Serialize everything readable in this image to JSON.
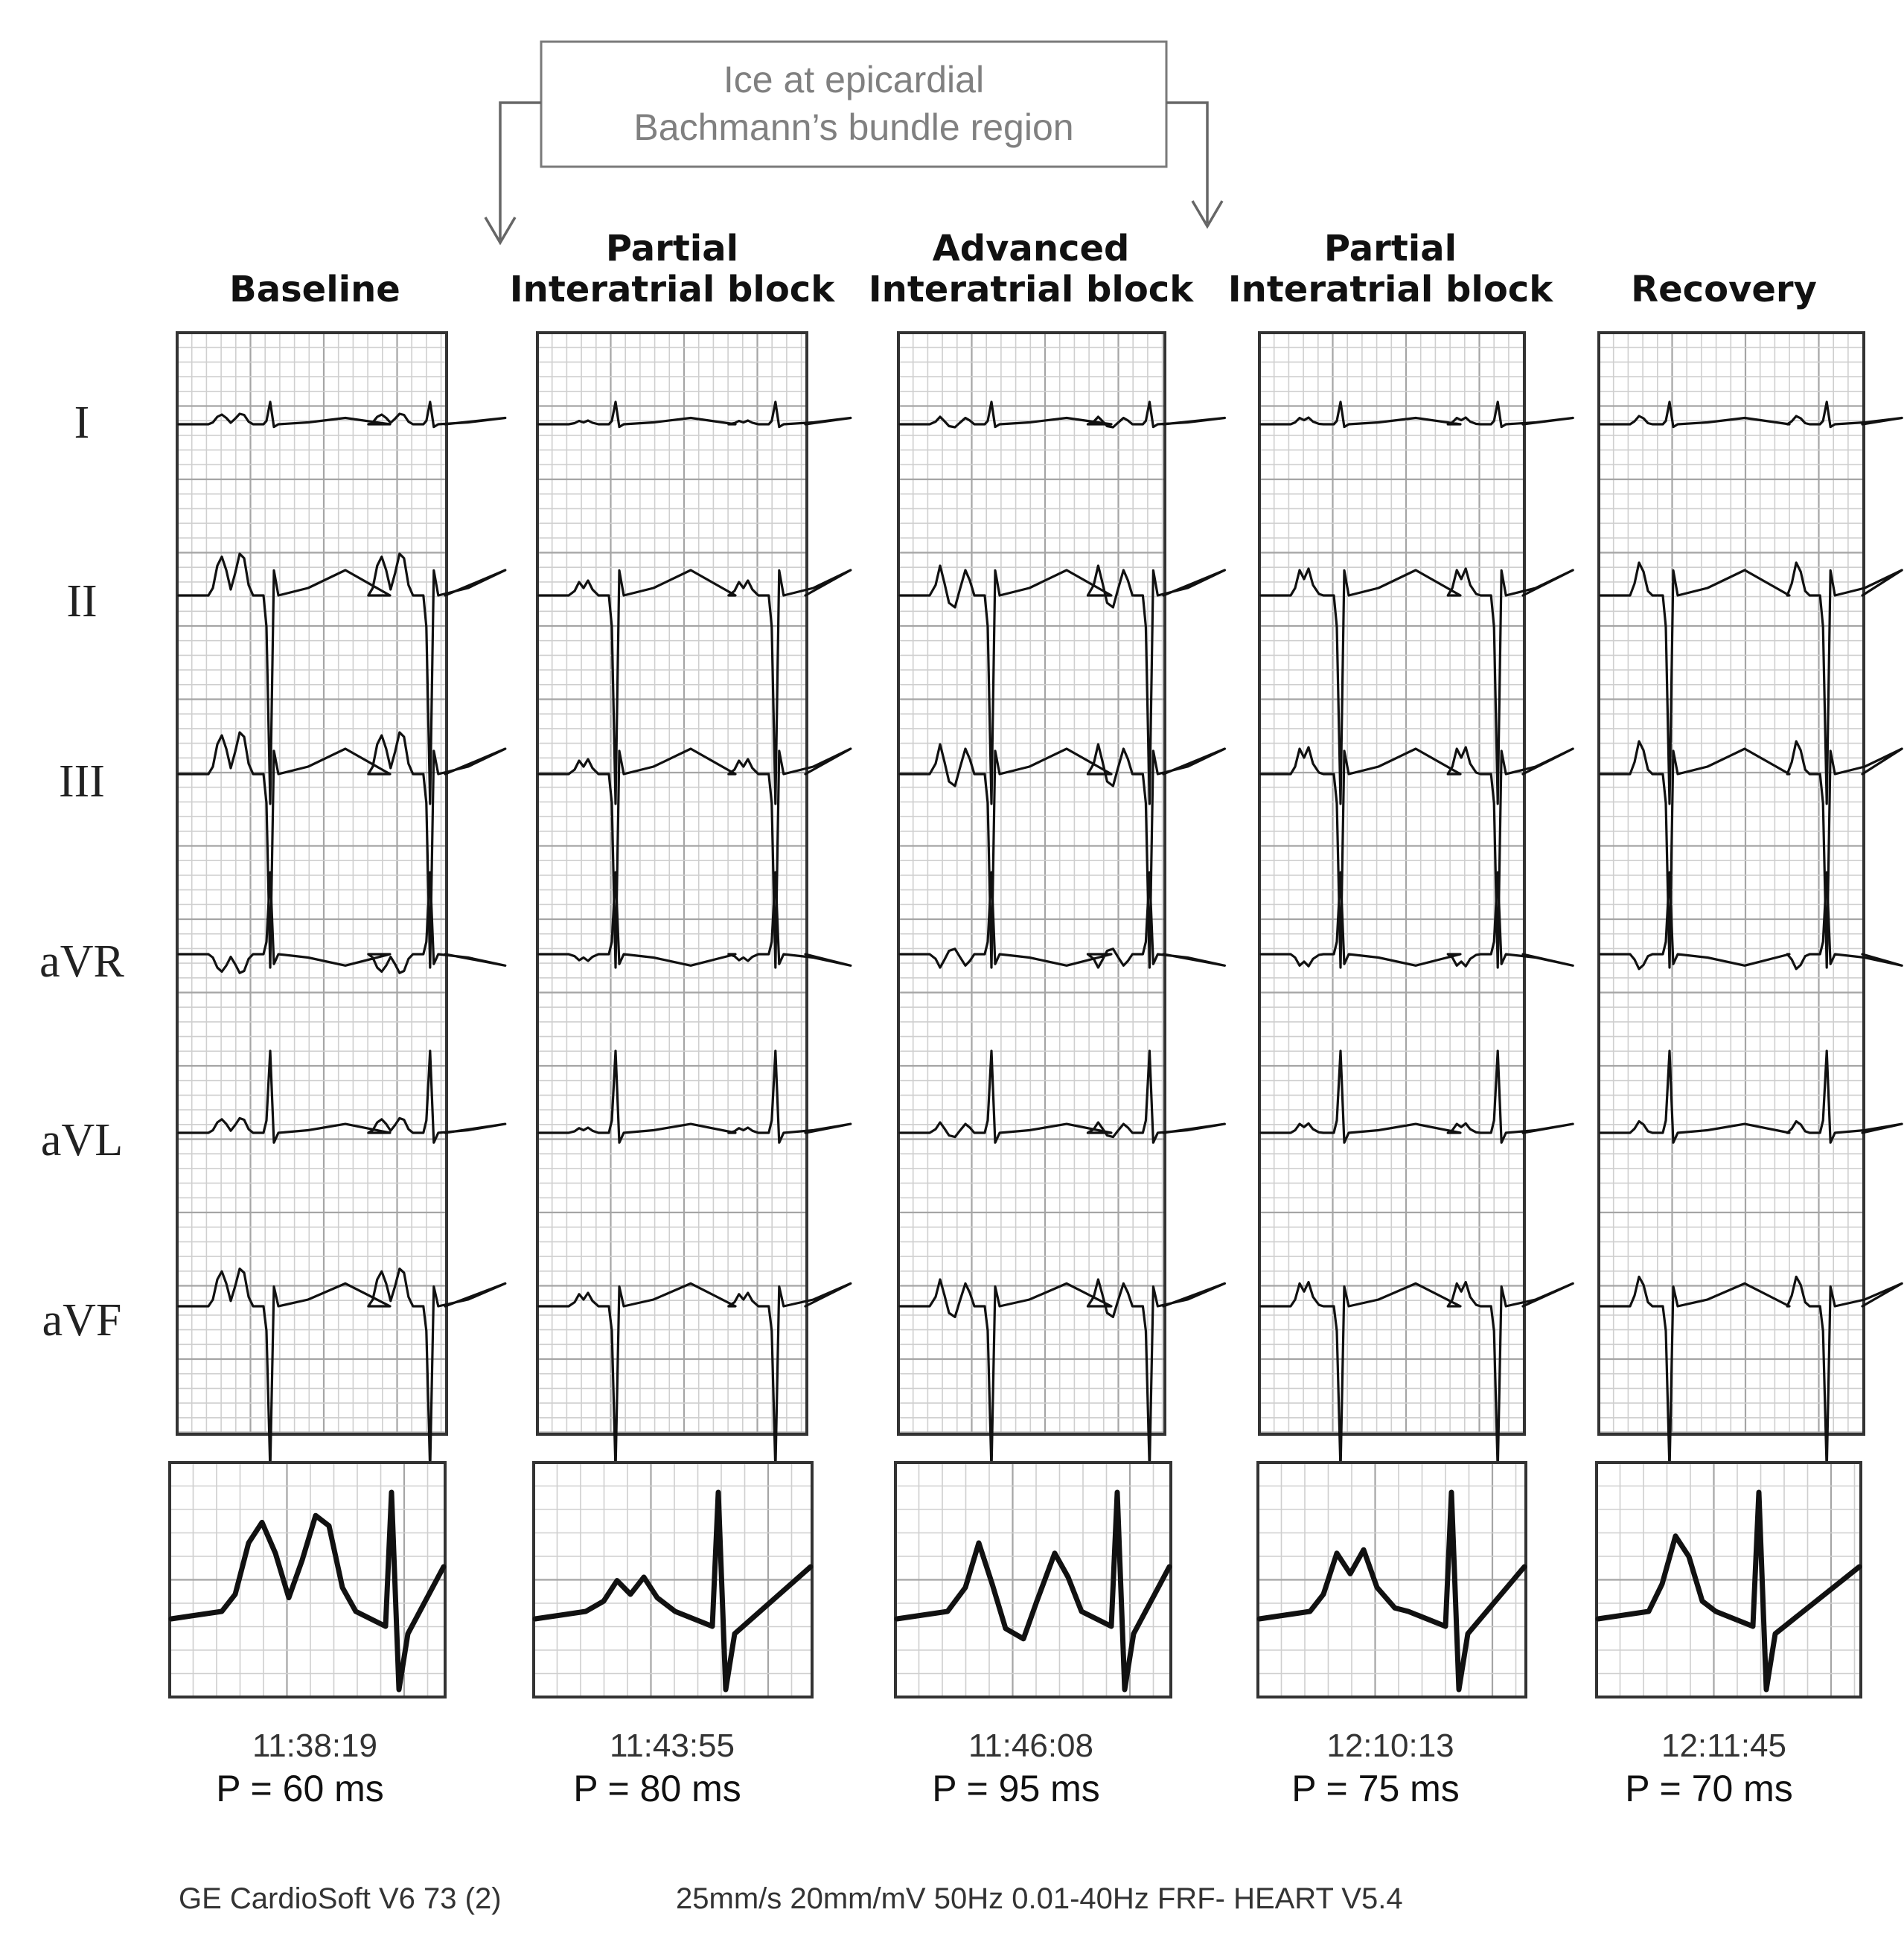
{
  "annotation": {
    "line1": "Ice at epicardial",
    "line2": "Bachmann’s  bundle  region"
  },
  "leads": [
    "I",
    "II",
    "III",
    "aVR",
    "aVL",
    "aVF"
  ],
  "panels": [
    {
      "title_line1": "",
      "title_line2": "Baseline",
      "time": "11:38:19",
      "p_duration": "P = 60 ms",
      "p_pattern": "bimodal-tall"
    },
    {
      "title_line1": "Partial",
      "title_line2": "Interatrial block",
      "time": "11:43:55",
      "p_duration": "P = 80 ms",
      "p_pattern": "notched-small"
    },
    {
      "title_line1": "Advanced",
      "title_line2": "Interatrial block",
      "time": "11:46:08",
      "p_duration": "P = 95 ms",
      "p_pattern": "biphasic-wide"
    },
    {
      "title_line1": "Partial",
      "title_line2": "Interatrial block",
      "time": "12:10:13",
      "p_duration": "P = 75 ms",
      "p_pattern": "notched"
    },
    {
      "title_line1": "",
      "title_line2": "Recovery",
      "time": "12:11:45",
      "p_duration": "P = 70 ms",
      "p_pattern": "single"
    }
  ],
  "footer": {
    "left": "GE CardioSoft V6 73 (2)",
    "right": "25mm/s 20mm/mV 50Hz 0.01-40Hz FRF- HEART V5.4"
  }
}
